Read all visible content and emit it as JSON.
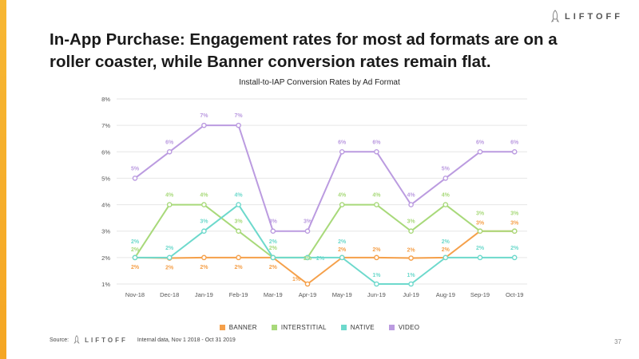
{
  "brand": {
    "name": "LIFTOFF",
    "accent": "#f5a623"
  },
  "headline": "In-App Purchase: Engagement rates for most ad formats are on a roller coaster, while Banner conversion rates remain flat.",
  "footer": {
    "source_label": "Source:",
    "brand": "LIFTOFF",
    "note": "Internal data, Nov 1 2018 - Oct 31 2019"
  },
  "page_number": "37",
  "chart_data": {
    "type": "line",
    "title": "Install-to-IAP Conversion Rates by Ad Format",
    "xlabel": "",
    "ylabel": "",
    "ylim": [
      1,
      8
    ],
    "yticks": [
      1,
      2,
      3,
      4,
      5,
      6,
      7,
      8
    ],
    "ytick_labels": [
      "1%",
      "2%",
      "3%",
      "4%",
      "5%",
      "6%",
      "7%",
      "8%"
    ],
    "grid": true,
    "legend_position": "bottom",
    "categories": [
      "Nov-18",
      "Dec-18",
      "Jan-19",
      "Feb-19",
      "Mar-19",
      "Apr-19",
      "May-19",
      "Jun-19",
      "Jul-19",
      "Aug-19",
      "Sep-19",
      "Oct-19"
    ],
    "series": [
      {
        "name": "BANNER",
        "color": "#f5a04a",
        "values": [
          2,
          1.98,
          2,
          2,
          2,
          1,
          2,
          2,
          1.98,
          2,
          3,
          3
        ],
        "labels": [
          "2%",
          "2%",
          "2%",
          "2%",
          "2%",
          "1%",
          "2%",
          "2%",
          "2%",
          "2%",
          "3%",
          "3%"
        ]
      },
      {
        "name": "INTERSTITIAL",
        "color": "#a8d97a",
        "values": [
          2,
          4,
          4,
          3,
          2,
          2,
          4,
          4,
          3,
          4,
          3,
          3
        ],
        "labels": [
          "2%",
          "4%",
          "4%",
          "3%",
          "2%",
          "2%",
          "4%",
          "4%",
          "3%",
          "4%",
          "3%",
          "3%"
        ]
      },
      {
        "name": "NATIVE",
        "color": "#6dd9cc",
        "values": [
          2,
          2,
          3,
          4,
          2,
          2,
          2,
          1,
          1,
          2,
          2,
          2
        ],
        "labels": [
          "2%",
          "2%",
          "3%",
          "4%",
          "2%",
          "2%",
          "2%",
          "1%",
          "1%",
          "2%",
          "2%",
          "2%"
        ]
      },
      {
        "name": "VIDEO",
        "color": "#bb9be0",
        "values": [
          5,
          6,
          7,
          7,
          3,
          3,
          6,
          6,
          4,
          5,
          6,
          6
        ],
        "labels": [
          "5%",
          "6%",
          "7%",
          "7%",
          "3%",
          "3%",
          "6%",
          "6%",
          "4%",
          "5%",
          "6%",
          "6%"
        ]
      }
    ]
  }
}
